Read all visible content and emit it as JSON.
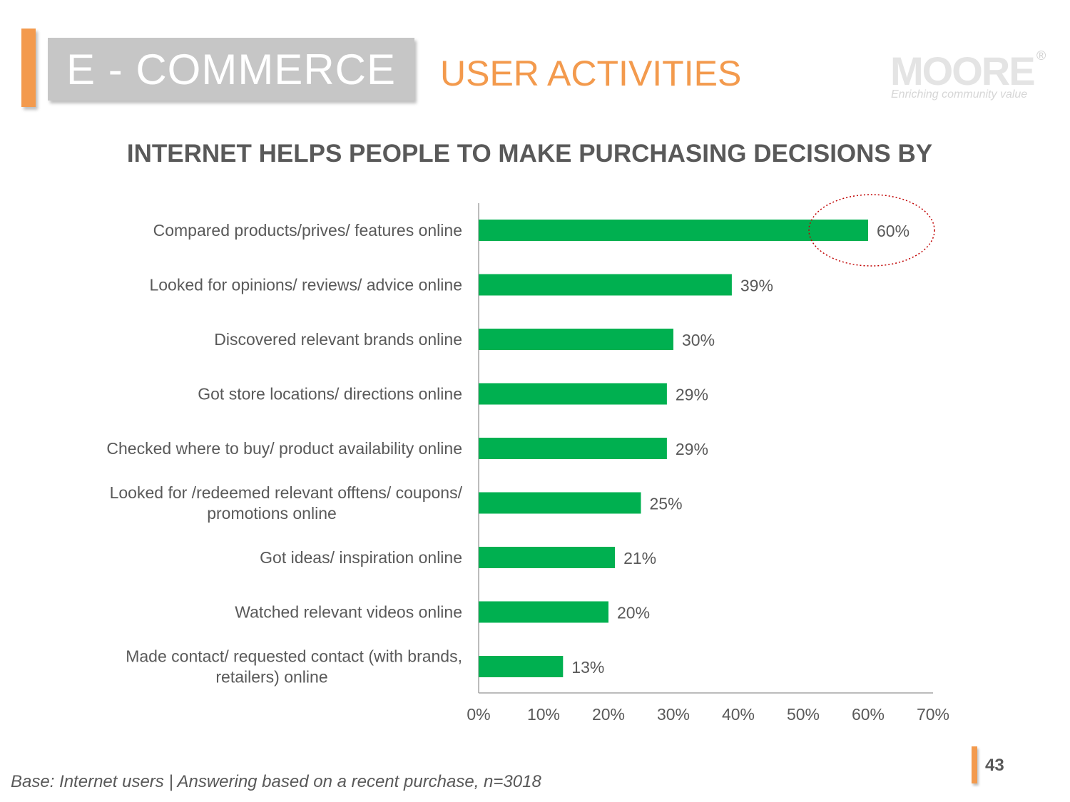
{
  "header": {
    "section_title": "E - COMMERCE",
    "subsection_title": "USER ACTIVITIES",
    "logo_text": "MOORE",
    "logo_reg": "®",
    "logo_tagline": "Enriching community value"
  },
  "colors": {
    "accent": "#f39a4d",
    "bar": "#00b050",
    "text": "#595959",
    "highlight_ring": "#c00000"
  },
  "chart_data": {
    "type": "bar",
    "orientation": "horizontal",
    "title": "INTERNET HELPS PEOPLE TO MAKE PURCHASING DECISIONS BY",
    "categories": [
      [
        "Compared products/prives/ features online"
      ],
      [
        "Looked for opinions/ reviews/ advice online"
      ],
      [
        "Discovered relevant brands online"
      ],
      [
        "Got store locations/ directions online"
      ],
      [
        "Checked where to buy/ product availability online"
      ],
      [
        "Looked for /redeemed relevant offtens/ coupons/",
        "promotions online"
      ],
      [
        "Got ideas/ inspiration online"
      ],
      [
        "Watched relevant videos online"
      ],
      [
        "Made contact/ requested contact (with brands,",
        "retailers) online"
      ]
    ],
    "values": [
      60,
      39,
      30,
      29,
      29,
      25,
      21,
      20,
      13
    ],
    "value_labels": [
      "60%",
      "39%",
      "30%",
      "29%",
      "29%",
      "25%",
      "21%",
      "20%",
      "13%"
    ],
    "xlim": [
      0,
      70
    ],
    "xticks": [
      0,
      10,
      20,
      30,
      40,
      50,
      60,
      70
    ],
    "xtick_labels": [
      "0%",
      "10%",
      "20%",
      "30%",
      "40%",
      "50%",
      "60%",
      "70%"
    ],
    "grid": false,
    "highlight": {
      "category_index": 0,
      "style": "dotted-ellipse"
    }
  },
  "footer": {
    "note": "Base: Internet users | Answering based on a recent purchase, n=3018",
    "page_number": "43"
  }
}
